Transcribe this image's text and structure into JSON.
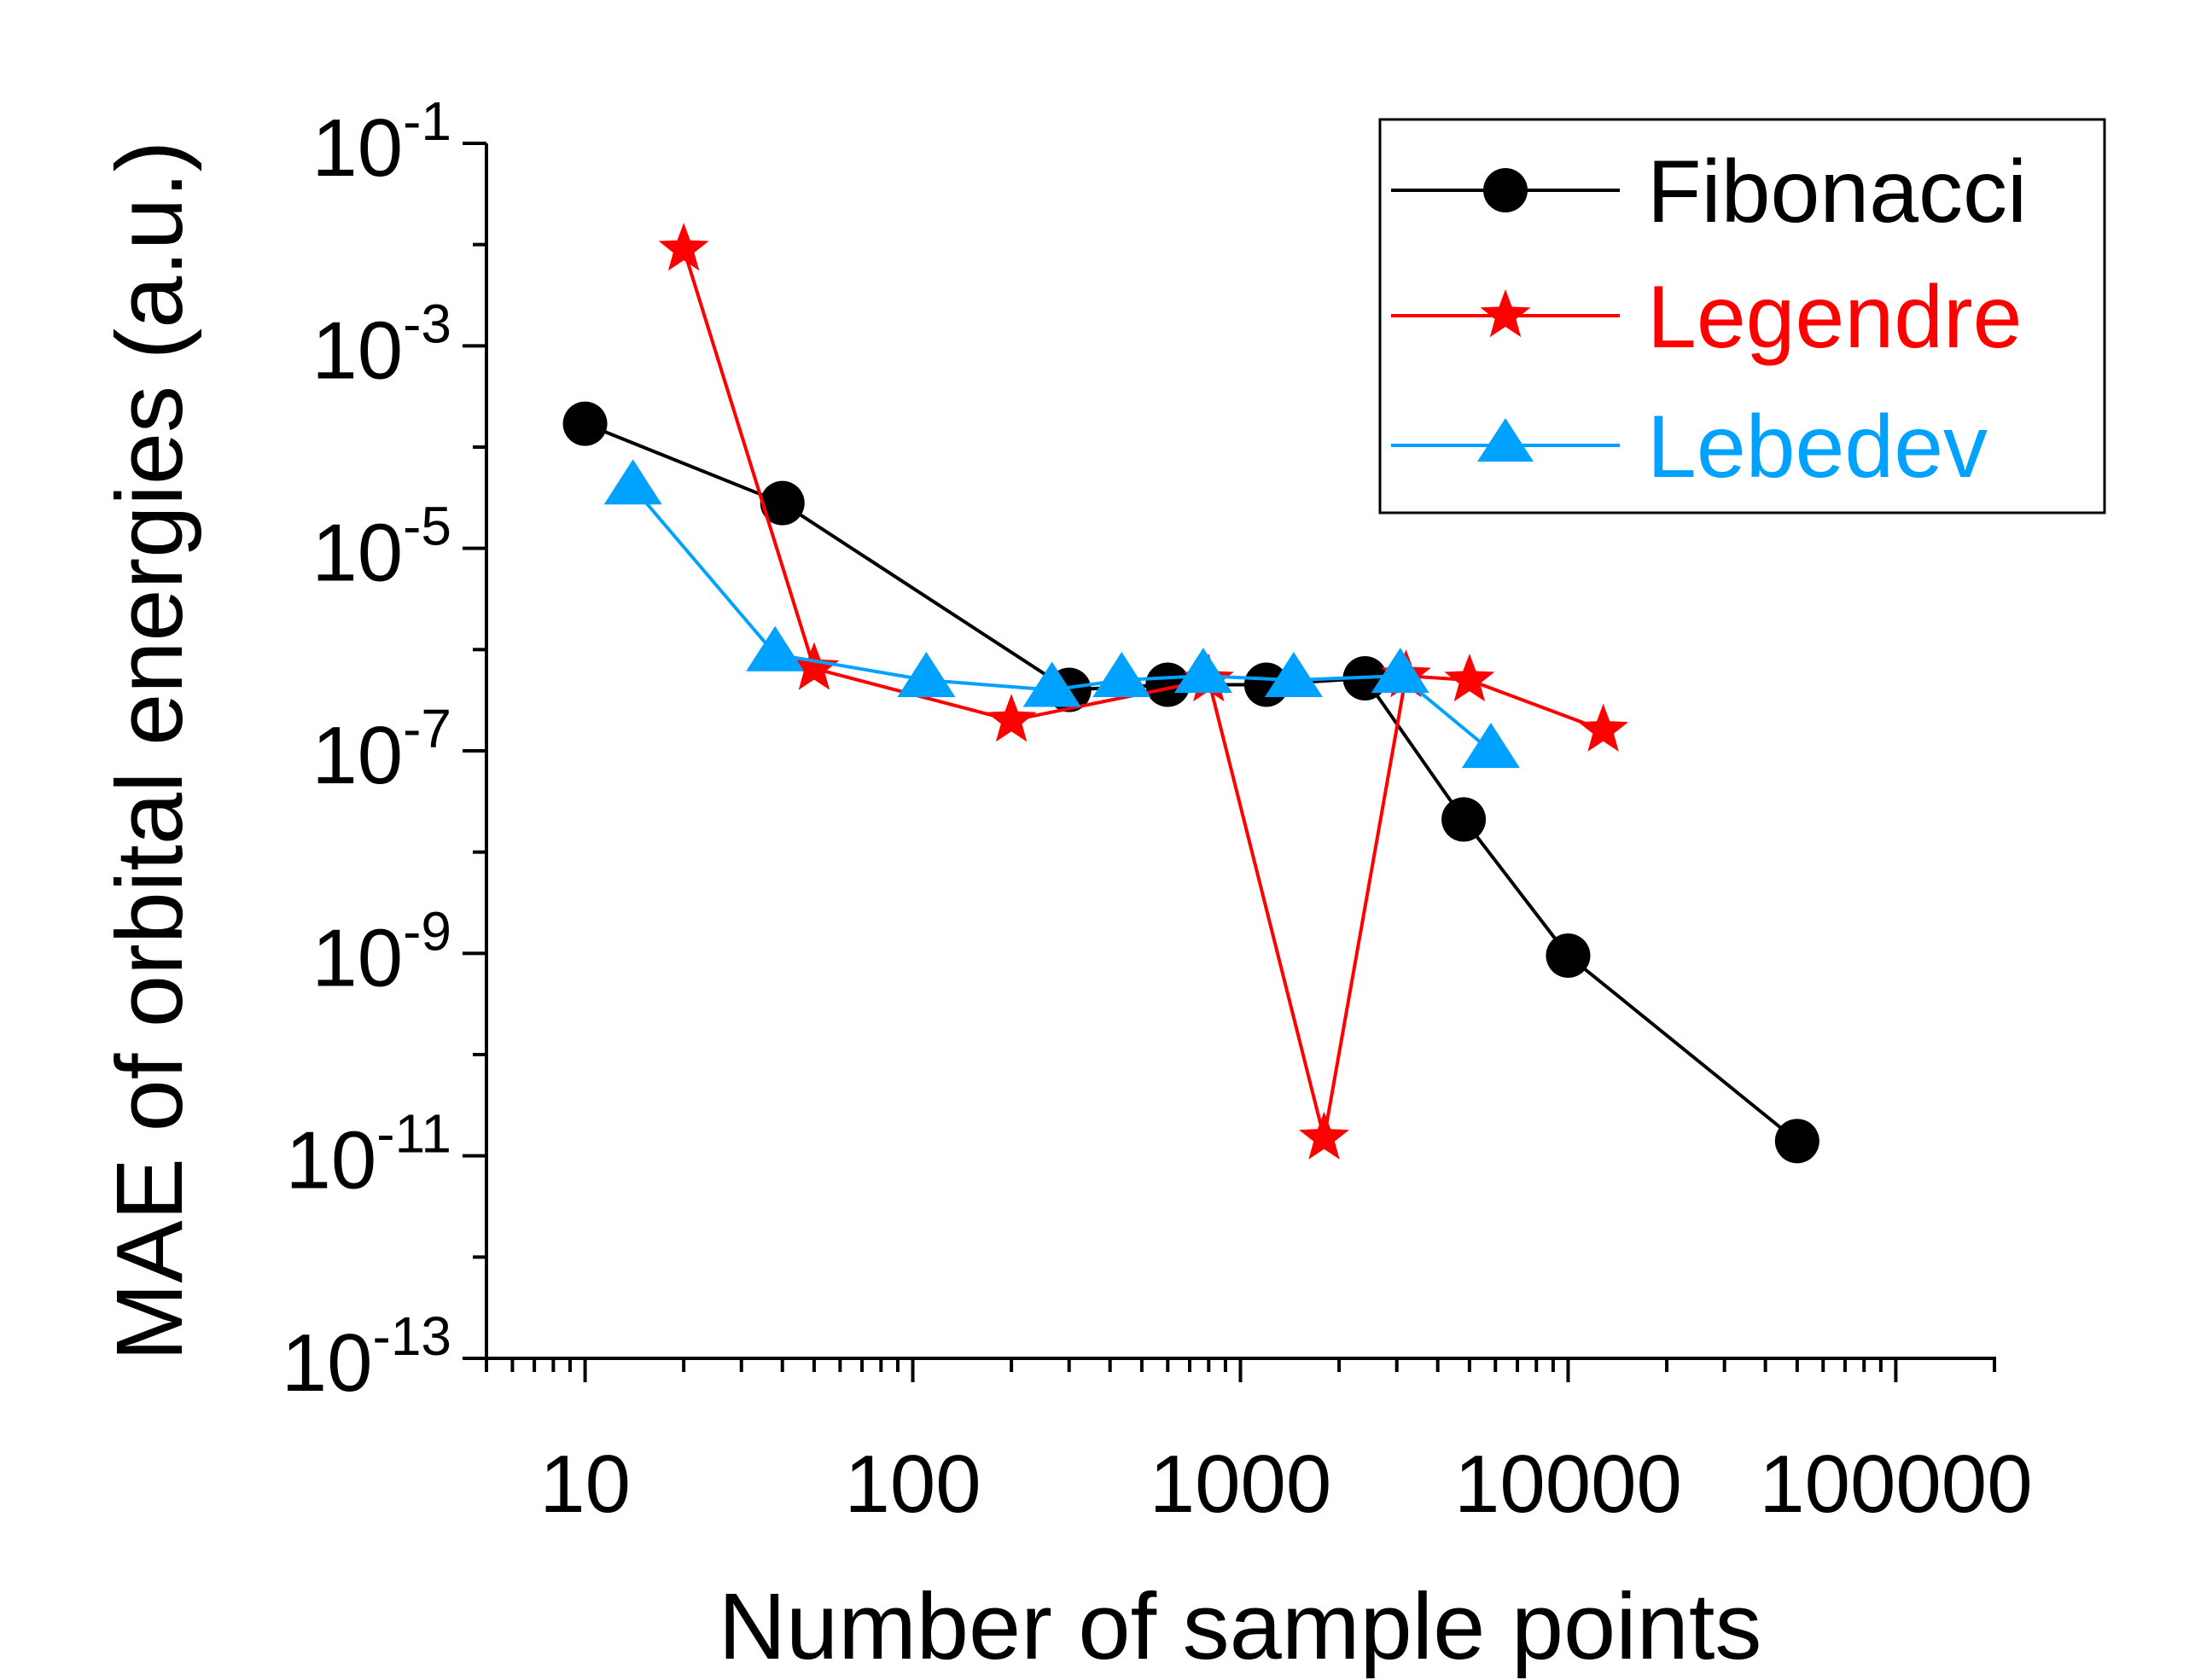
{
  "chart_data": {
    "type": "line",
    "title": "",
    "xlabel": "Number of sample points",
    "ylabel": "MAE of orbital energies (a.u.)",
    "x_scale": "log",
    "y_scale": "log",
    "xlim": [
      5,
      200000
    ],
    "ylim": [
      1e-13,
      0.1
    ],
    "x_ticks": [
      10,
      100,
      1000,
      10000,
      100000
    ],
    "x_tick_labels": [
      "10",
      "100",
      "1000",
      "10000",
      "100000"
    ],
    "y_ticks": [
      {
        "value": 0.1,
        "base": "10",
        "exp": "-1"
      },
      {
        "value": 0.001,
        "base": "10",
        "exp": "-3"
      },
      {
        "value": 1e-05,
        "base": "10",
        "exp": "-5"
      },
      {
        "value": 1e-07,
        "base": "10",
        "exp": "-7"
      },
      {
        "value": 1e-09,
        "base": "10",
        "exp": "-9"
      },
      {
        "value": 1e-11,
        "base": "10",
        "exp": "-11"
      },
      {
        "value": 1e-13,
        "base": "10",
        "exp": "-13"
      }
    ],
    "legend_position": "top-right",
    "series": [
      {
        "name": "Fibonacci",
        "color": "#000000",
        "marker": "circle",
        "x": [
          10,
          40,
          300,
          600,
          1200,
          2400,
          4800,
          10000,
          50000
        ],
        "y": [
          0.00017,
          2.8e-05,
          4e-07,
          4.5e-07,
          4.5e-07,
          5.2e-07,
          2.1e-08,
          9.5e-10,
          1.4e-11
        ]
      },
      {
        "name": "Legendre",
        "color": "#ff0000",
        "marker": "star",
        "x": [
          20,
          50,
          200,
          800,
          1800,
          3200,
          5000,
          12800
        ],
        "y": [
          0.009,
          6.5e-07,
          2e-07,
          5e-07,
          1.5e-11,
          5.5e-07,
          5e-07,
          1.6e-07
        ]
      },
      {
        "name": "Lebedev",
        "color": "#00a2ff",
        "marker": "triangle",
        "x": [
          14,
          38,
          110,
          266,
          434,
          770,
          1454,
          3074,
          5810
        ],
        "y": [
          4e-05,
          9e-07,
          5e-07,
          4e-07,
          5e-07,
          5.5e-07,
          5e-07,
          5.5e-07,
          1e-07
        ]
      }
    ]
  }
}
